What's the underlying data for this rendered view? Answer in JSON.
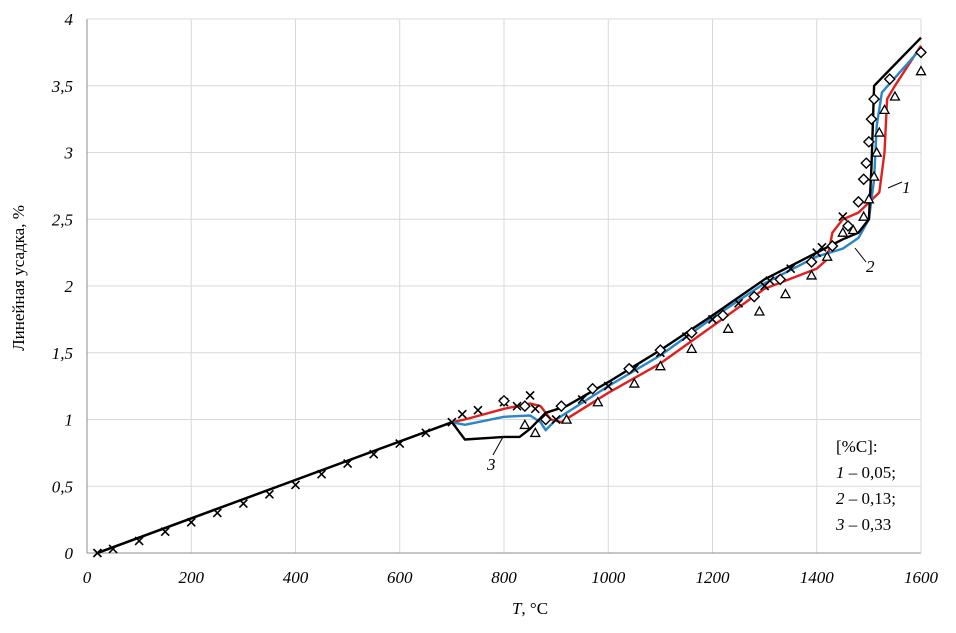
{
  "chart_data": {
    "type": "line",
    "xlabel_var": "T",
    "xlabel_unit": ", °C",
    "ylabel": "Линейная усадка, %",
    "xlim": [
      0,
      1600
    ],
    "ylim": [
      0,
      4
    ],
    "x_ticks": [
      "0",
      "200",
      "400",
      "600",
      "800",
      "1000",
      "1200",
      "1400",
      "1600"
    ],
    "y_ticks": [
      "0",
      "0,5",
      "1",
      "1,5",
      "2",
      "2,5",
      "3",
      "3,5",
      "4"
    ],
    "grid": true,
    "legend": {
      "position": "bottom-right",
      "header": "[%C]:",
      "entries": [
        {
          "num": "1",
          "text": " – 0,05;"
        },
        {
          "num": "2",
          "text": " – 0,13;"
        },
        {
          "num": "3",
          "text": " – 0,33"
        }
      ]
    },
    "curve_labels": [
      {
        "text": "1",
        "series": "red"
      },
      {
        "text": "2",
        "series": "blue"
      },
      {
        "text": "3",
        "series": "black"
      }
    ],
    "colors": {
      "series1": "#e02020",
      "series2": "#2a86c8",
      "series3": "#000000",
      "grid": "#d9d9d9"
    },
    "series": [
      {
        "key": "1",
        "color": "#e02020",
        "points": [
          [
            20,
            0
          ],
          [
            700,
            0.98
          ],
          [
            725,
            1.0
          ],
          [
            800,
            1.08
          ],
          [
            850,
            1.12
          ],
          [
            870,
            1.1
          ],
          [
            890,
            1.0
          ],
          [
            910,
            0.98
          ],
          [
            1000,
            1.2
          ],
          [
            1100,
            1.42
          ],
          [
            1200,
            1.7
          ],
          [
            1300,
            1.98
          ],
          [
            1400,
            2.13
          ],
          [
            1420,
            2.2
          ],
          [
            1430,
            2.4
          ],
          [
            1450,
            2.5
          ],
          [
            1480,
            2.55
          ],
          [
            1520,
            2.7
          ],
          [
            1530,
            3.0
          ],
          [
            1535,
            3.4
          ],
          [
            1550,
            3.5
          ],
          [
            1600,
            3.8
          ]
        ]
      },
      {
        "key": "2",
        "color": "#2a86c8",
        "points": [
          [
            20,
            0
          ],
          [
            700,
            0.98
          ],
          [
            725,
            0.96
          ],
          [
            800,
            1.02
          ],
          [
            850,
            1.03
          ],
          [
            870,
            0.98
          ],
          [
            880,
            0.92
          ],
          [
            900,
            1.0
          ],
          [
            1000,
            1.25
          ],
          [
            1100,
            1.48
          ],
          [
            1200,
            1.76
          ],
          [
            1300,
            2.02
          ],
          [
            1400,
            2.22
          ],
          [
            1450,
            2.28
          ],
          [
            1480,
            2.36
          ],
          [
            1500,
            2.5
          ],
          [
            1510,
            2.8
          ],
          [
            1515,
            3.2
          ],
          [
            1525,
            3.45
          ],
          [
            1600,
            3.78
          ]
        ]
      },
      {
        "key": "3",
        "color": "#000000",
        "points": [
          [
            20,
            0
          ],
          [
            700,
            0.98
          ],
          [
            725,
            0.85
          ],
          [
            725,
            0.85
          ],
          [
            800,
            0.87
          ],
          [
            830,
            0.87
          ],
          [
            850,
            0.93
          ],
          [
            880,
            1.05
          ],
          [
            920,
            1.1
          ],
          [
            1000,
            1.28
          ],
          [
            1100,
            1.52
          ],
          [
            1200,
            1.78
          ],
          [
            1300,
            2.05
          ],
          [
            1400,
            2.25
          ],
          [
            1450,
            2.35
          ],
          [
            1480,
            2.4
          ],
          [
            1500,
            2.5
          ],
          [
            1505,
            2.9
          ],
          [
            1510,
            3.5
          ],
          [
            1600,
            3.86
          ]
        ]
      }
    ],
    "markers_x": [
      [
        20,
        0.0
      ],
      [
        50,
        0.03
      ],
      [
        100,
        0.09
      ],
      [
        150,
        0.16
      ],
      [
        200,
        0.23
      ],
      [
        250,
        0.3
      ],
      [
        300,
        0.37
      ],
      [
        350,
        0.44
      ],
      [
        400,
        0.51
      ],
      [
        450,
        0.59
      ],
      [
        500,
        0.67
      ],
      [
        550,
        0.74
      ],
      [
        600,
        0.82
      ],
      [
        650,
        0.9
      ],
      [
        700,
        0.98
      ],
      [
        720,
        1.04
      ],
      [
        750,
        1.07
      ],
      [
        800,
        1.13
      ],
      [
        825,
        1.1
      ],
      [
        850,
        1.18
      ],
      [
        860,
        1.08
      ],
      [
        900,
        1.0
      ],
      [
        950,
        1.15
      ],
      [
        1000,
        1.25
      ],
      [
        1050,
        1.38
      ],
      [
        1100,
        1.5
      ],
      [
        1150,
        1.62
      ],
      [
        1200,
        1.75
      ],
      [
        1250,
        1.87
      ],
      [
        1300,
        2.0
      ],
      [
        1310,
        2.04
      ],
      [
        1350,
        2.13
      ],
      [
        1400,
        2.25
      ],
      [
        1410,
        2.29
      ],
      [
        1450,
        2.52
      ]
    ],
    "markers_diamond": [
      [
        800,
        1.14
      ],
      [
        840,
        1.1
      ],
      [
        880,
        1.0
      ],
      [
        910,
        1.1
      ],
      [
        970,
        1.23
      ],
      [
        1040,
        1.38
      ],
      [
        1100,
        1.52
      ],
      [
        1160,
        1.65
      ],
      [
        1220,
        1.78
      ],
      [
        1280,
        1.92
      ],
      [
        1330,
        2.05
      ],
      [
        1390,
        2.18
      ],
      [
        1430,
        2.3
      ],
      [
        1460,
        2.45
      ],
      [
        1480,
        2.63
      ],
      [
        1490,
        2.8
      ],
      [
        1495,
        2.92
      ],
      [
        1500,
        3.08
      ],
      [
        1505,
        3.25
      ],
      [
        1510,
        3.4
      ],
      [
        1540,
        3.55
      ],
      [
        1600,
        3.75
      ]
    ],
    "markers_triangle": [
      [
        840,
        0.96
      ],
      [
        860,
        0.9
      ],
      [
        920,
        1.0
      ],
      [
        980,
        1.13
      ],
      [
        1050,
        1.27
      ],
      [
        1100,
        1.4
      ],
      [
        1160,
        1.53
      ],
      [
        1230,
        1.68
      ],
      [
        1290,
        1.81
      ],
      [
        1340,
        1.94
      ],
      [
        1390,
        2.08
      ],
      [
        1420,
        2.22
      ],
      [
        1450,
        2.4
      ],
      [
        1470,
        2.42
      ],
      [
        1490,
        2.52
      ],
      [
        1500,
        2.65
      ],
      [
        1510,
        2.82
      ],
      [
        1515,
        3.0
      ],
      [
        1520,
        3.15
      ],
      [
        1530,
        3.32
      ],
      [
        1550,
        3.42
      ],
      [
        1600,
        3.61
      ]
    ]
  }
}
